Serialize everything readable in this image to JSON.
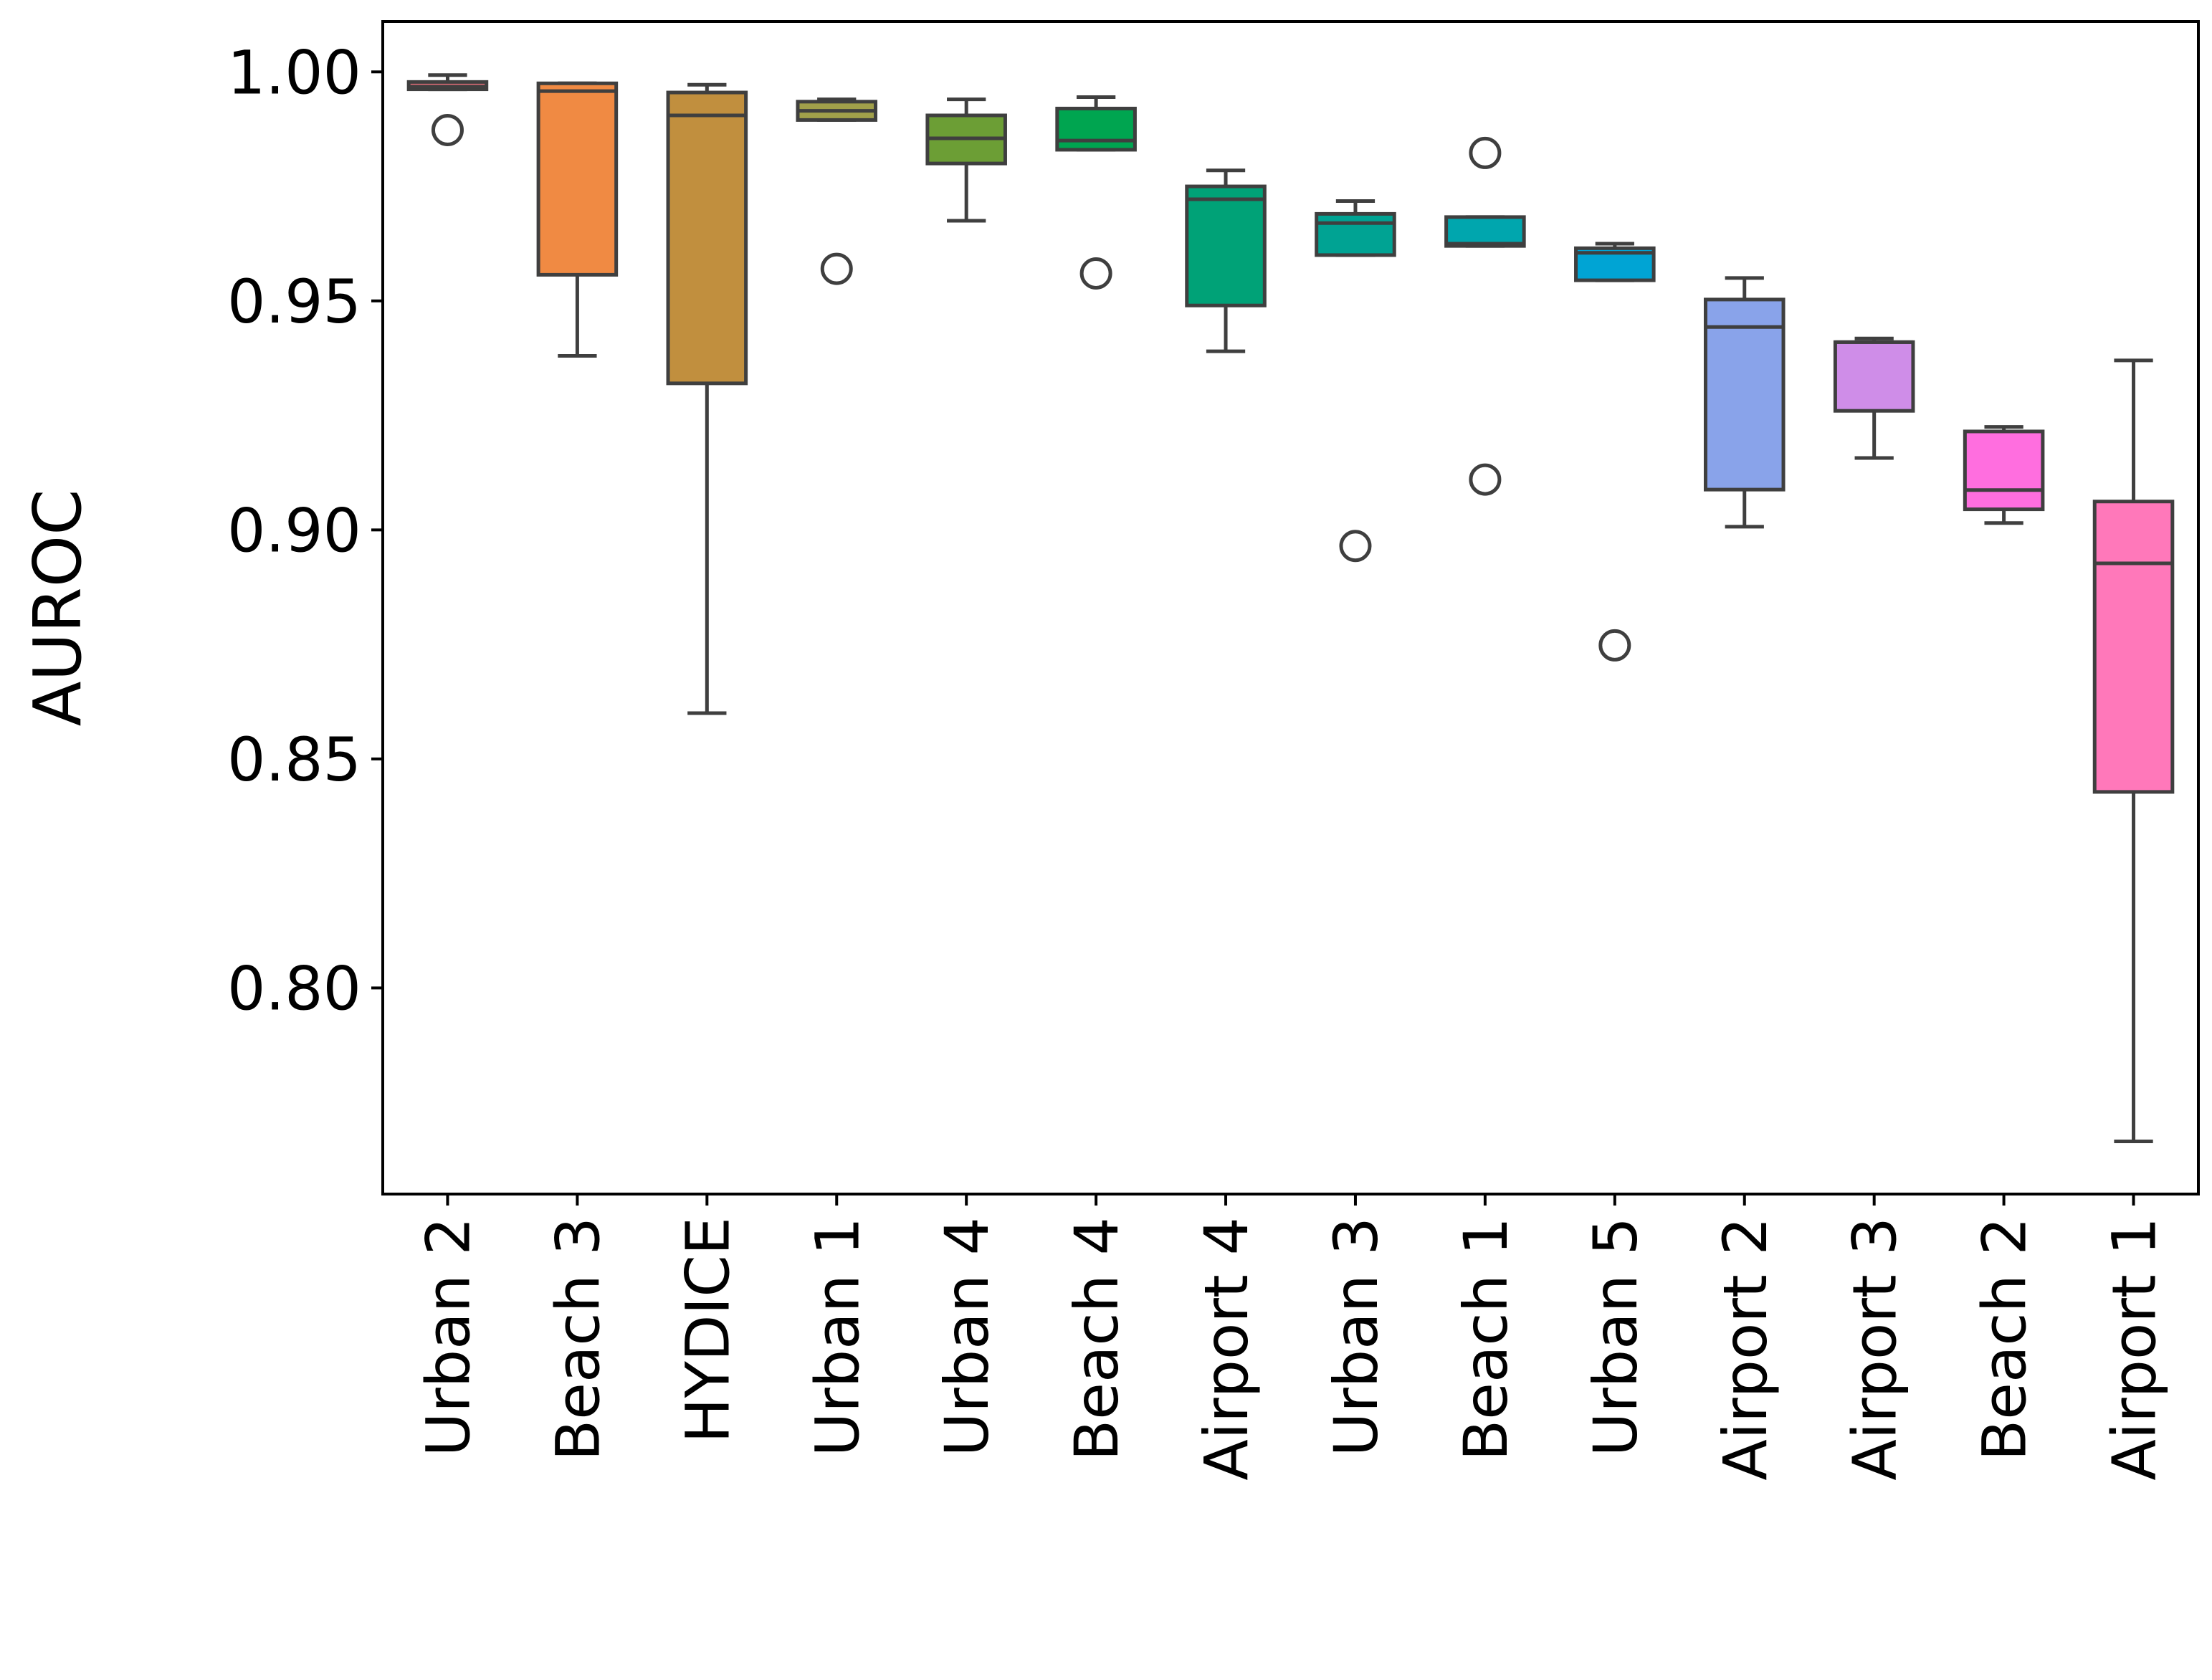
{
  "chart_data": {
    "type": "box",
    "title": "",
    "xlabel": "",
    "ylabel": "AUROC",
    "ylim": [
      0.755,
      1.011
    ],
    "yticks": [
      1.0,
      0.95,
      0.9,
      0.85,
      0.8
    ],
    "ytick_labels": [
      "1.00",
      "0.95",
      "0.90",
      "0.85",
      "0.80"
    ],
    "grid": false,
    "categories": [
      "Urban 2",
      "Beach 3",
      "HYDICE",
      "Urban 1",
      "Urban 4",
      "Beach 4",
      "Airport 4",
      "Urban 3",
      "Beach 1",
      "Urban 5",
      "Airport 2",
      "Airport 3",
      "Beach 2",
      "Airport 1"
    ],
    "boxes": [
      {
        "label": "Urban 2",
        "color": "#e9707a",
        "whisker_low": 0.9962,
        "q1": 0.9962,
        "median": 0.9968,
        "q3": 0.9978,
        "whisker_high": 0.9993,
        "outliers": [
          0.9873
        ]
      },
      {
        "label": "Beach 3",
        "color": "#f08a43",
        "whisker_low": 0.938,
        "q1": 0.9557,
        "median": 0.9958,
        "q3": 0.9975,
        "whisker_high": 0.9975,
        "outliers": []
      },
      {
        "label": "HYDICE",
        "color": "#c18f3e",
        "whisker_low": 0.86,
        "q1": 0.932,
        "median": 0.9905,
        "q3": 0.9955,
        "whisker_high": 0.9972,
        "outliers": []
      },
      {
        "label": "Urban 1",
        "color": "#a1a04a",
        "whisker_low": 0.9895,
        "q1": 0.9895,
        "median": 0.9915,
        "q3": 0.9935,
        "whisker_high": 0.994,
        "outliers": [
          0.957
        ]
      },
      {
        "label": "Urban 4",
        "color": "#6c9e35",
        "whisker_low": 0.9675,
        "q1": 0.98,
        "median": 0.9855,
        "q3": 0.9905,
        "whisker_high": 0.994,
        "outliers": []
      },
      {
        "label": "Beach 4",
        "color": "#00a550",
        "whisker_low": 0.983,
        "q1": 0.983,
        "median": 0.985,
        "q3": 0.992,
        "whisker_high": 0.9945,
        "outliers": [
          0.956
        ]
      },
      {
        "label": "Airport 4",
        "color": "#00a277",
        "whisker_low": 0.939,
        "q1": 0.949,
        "median": 0.9722,
        "q3": 0.975,
        "whisker_high": 0.9785,
        "outliers": []
      },
      {
        "label": "Urban 3",
        "color": "#00a393",
        "whisker_low": 0.96,
        "q1": 0.96,
        "median": 0.967,
        "q3": 0.969,
        "whisker_high": 0.9718,
        "outliers": [
          0.8965
        ]
      },
      {
        "label": "Beach 1",
        "color": "#00a6ae",
        "whisker_low": 0.962,
        "q1": 0.962,
        "median": 0.9625,
        "q3": 0.9683,
        "whisker_high": 0.9683,
        "outliers": [
          0.9823,
          0.911
        ]
      },
      {
        "label": "Urban 5",
        "color": "#00a4d4",
        "whisker_low": 0.9545,
        "q1": 0.9545,
        "median": 0.9605,
        "q3": 0.9615,
        "whisker_high": 0.9625,
        "outliers": [
          0.8748
        ]
      },
      {
        "label": "Airport 2",
        "color": "#89a3ea",
        "whisker_low": 0.9007,
        "q1": 0.9088,
        "median": 0.9443,
        "q3": 0.9503,
        "whisker_high": 0.955,
        "outliers": []
      },
      {
        "label": "Airport 3",
        "color": "#cf8de8",
        "whisker_low": 0.9157,
        "q1": 0.926,
        "median": 0.941,
        "q3": 0.941,
        "whisker_high": 0.9418,
        "outliers": []
      },
      {
        "label": "Beach 2",
        "color": "#ff6edf",
        "whisker_low": 0.9015,
        "q1": 0.9045,
        "median": 0.9087,
        "q3": 0.9215,
        "whisker_high": 0.9225,
        "outliers": []
      },
      {
        "label": "Airport 1",
        "color": "#ff78ba",
        "whisker_low": 0.7665,
        "q1": 0.8428,
        "median": 0.8927,
        "q3": 0.9062,
        "whisker_high": 0.937,
        "outliers": []
      }
    ]
  }
}
